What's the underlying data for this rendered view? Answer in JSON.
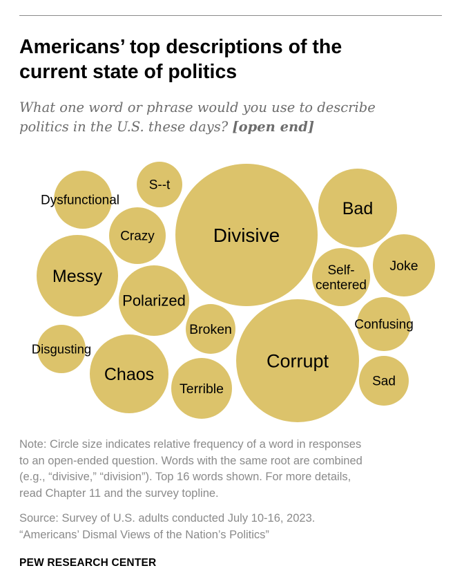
{
  "title_lines": [
    "Americans’ top descriptions of the",
    "current state of politics"
  ],
  "subtitle_line1": "What one word or phrase would you use to describe",
  "subtitle_line2_pre": "politics in the U.S. these days? ",
  "subtitle_line2_em": "[open end]",
  "chart_data": {
    "type": "bubble",
    "encoding": "Circle size indicates relative frequency (relative units)",
    "bubbles": [
      {
        "word": "Divisive",
        "size": 100
      },
      {
        "word": "Corrupt",
        "size": 84
      },
      {
        "word": "Bad",
        "size": 30
      },
      {
        "word": "Messy",
        "size": 32
      },
      {
        "word": "Chaos",
        "size": 20
      },
      {
        "word": "Polarized",
        "size": 17
      },
      {
        "word": "Terrible",
        "size": 14
      },
      {
        "word": "Dysfunctional",
        "size": 13
      },
      {
        "word": "Self-\ncentered",
        "size": 13
      },
      {
        "word": "Crazy",
        "size": 11
      },
      {
        "word": "Joke",
        "size": 14
      },
      {
        "word": "Confusing",
        "size": 11.5
      },
      {
        "word": "Broken",
        "size": 10
      },
      {
        "word": "Sad",
        "size": 9
      },
      {
        "word": "Disgusting",
        "size": 9
      },
      {
        "word": "S--t",
        "size": 8.5
      }
    ],
    "color": "#dcc36b"
  },
  "note_lines": [
    "Note: Circle size indicates relative frequency of a word in responses",
    "to an open-ended question. Words with the same root are combined",
    "(e.g., “divisive,” “division”). Top 16 words shown. For more details,",
    "read Chapter 11 and the survey topline."
  ],
  "source_lines": [
    "Source: Survey of U.S. adults conducted July 10-16, 2023.",
    "“Americans’ Dismal Views of the Nation’s Politics”"
  ],
  "org": "PEW RESEARCH CENTER"
}
